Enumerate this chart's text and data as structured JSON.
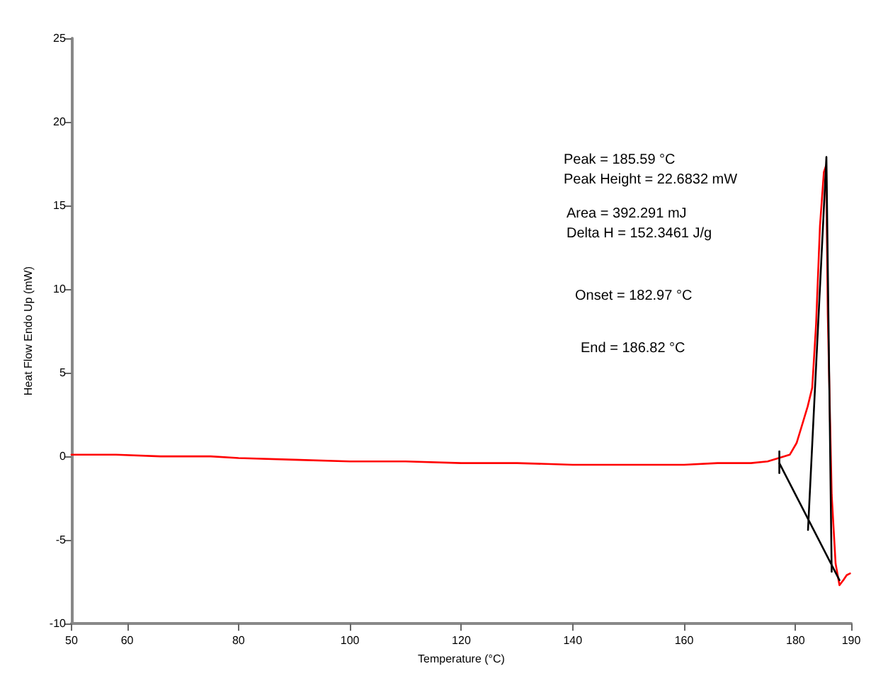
{
  "chart_data": {
    "type": "line",
    "xlabel": "Temperature (°C)",
    "ylabel": "Heat Flow Endo Up (mW)",
    "xlim": [
      50,
      190
    ],
    "xticks": [
      50,
      60,
      80,
      100,
      120,
      140,
      160,
      180,
      190
    ],
    "ylim": [
      -10,
      25
    ],
    "yticks": [
      -10,
      -5,
      0,
      5,
      10,
      15,
      20,
      25
    ],
    "grid": false,
    "marker": "none",
    "line_style": "solid",
    "annotations": [
      "Peak = 185.59 °C",
      "Peak Height = 22.6832 mW",
      "Area = 392.291 mJ",
      "Delta H = 152.3461 J/g",
      "Onset = 182.97 °C",
      "End = 186.82 °C"
    ],
    "series": [
      {
        "color": "#ff0000",
        "x": [
          50,
          58,
          66,
          75,
          80,
          90,
          100,
          110,
          120,
          130,
          140,
          150,
          160,
          166,
          172,
          175,
          177,
          178.97,
          180.2,
          181.3,
          182.2,
          183.0,
          183.7,
          184.4,
          185.1,
          185.5,
          185.8,
          186.5,
          187.2,
          187.9,
          188.6,
          189.2,
          189.8
        ],
        "values": [
          0.1,
          0.1,
          0,
          0,
          -0.1,
          -0.2,
          -0.3,
          -0.3,
          -0.4,
          -0.4,
          -0.5,
          -0.5,
          -0.5,
          -0.4,
          -0.4,
          -0.3,
          -0.1,
          0.1,
          0.8,
          2.0,
          3.0,
          4.1,
          7.9,
          13.8,
          17.0,
          17.4,
          8.5,
          -2.3,
          -6.4,
          -7.7,
          -7.4,
          -7.1,
          -7.0
        ]
      },
      {
        "color": "#000000",
        "x": [
          177.1,
          187.9
        ],
        "values": [
          -0.4,
          -7.4
        ]
      },
      {
        "color": "#000000",
        "x": [
          182.25,
          185.55,
          186.5
        ],
        "values": [
          -4.4,
          17.9,
          -6.9
        ]
      },
      {
        "color": "#000000",
        "x": [
          177.1,
          177.1
        ],
        "values": [
          0.3,
          -1.0
        ]
      }
    ]
  }
}
